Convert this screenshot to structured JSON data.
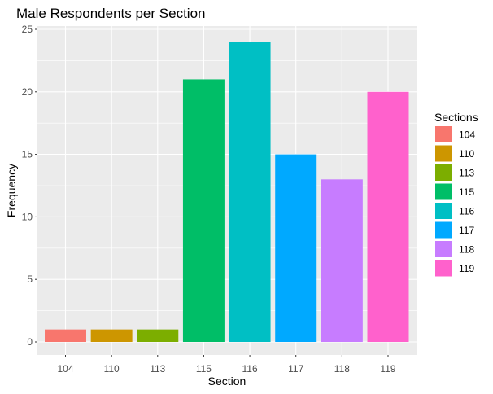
{
  "chart_data": {
    "type": "bar",
    "title": "Male Respondents per Section",
    "xlabel": "Section",
    "ylabel": "Frequency",
    "categories": [
      "104",
      "110",
      "113",
      "115",
      "116",
      "117",
      "118",
      "119"
    ],
    "values": [
      1,
      1,
      1,
      21,
      24,
      15,
      13,
      20
    ],
    "colors": [
      "#F8766D",
      "#CD9600",
      "#7CAE00",
      "#00BE67",
      "#00BFC4",
      "#00A9FF",
      "#C77CFF",
      "#FF61CC"
    ],
    "ylim": [
      0,
      25
    ],
    "yticks": [
      0,
      5,
      10,
      15,
      20,
      25
    ],
    "grid": true,
    "background": "#EBEBEB",
    "legend": {
      "title": "Sections",
      "placement": "right",
      "entries": [
        "104",
        "110",
        "113",
        "115",
        "116",
        "117",
        "118",
        "119"
      ]
    }
  }
}
